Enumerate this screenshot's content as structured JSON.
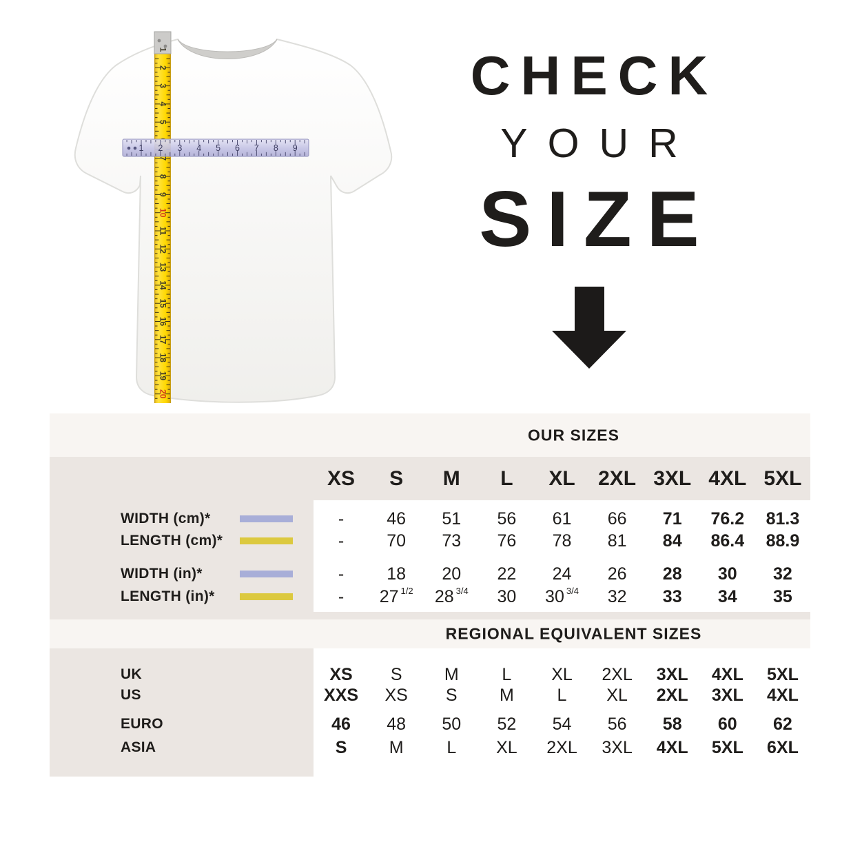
{
  "hero": {
    "line1": "CHECK",
    "line2": "YOUR",
    "line3": "SIZE",
    "arrow_icon": "down-arrow"
  },
  "tshirt": {
    "description": "white t-shirt with measuring tapes",
    "vertical_tape": {
      "color": "#ffd800",
      "numbers": [
        "1",
        "2",
        "3",
        "4",
        "5",
        "6",
        "7",
        "8",
        "9",
        "10",
        "11",
        "12",
        "13",
        "14",
        "15",
        "16",
        "17",
        "18",
        "19",
        "20"
      ],
      "red_numbers": [
        "10",
        "20"
      ]
    },
    "horizontal_ruler": {
      "color": "#c6c5e6",
      "numbers": [
        "1",
        "2",
        "3",
        "4",
        "5",
        "6",
        "7",
        "8",
        "9"
      ]
    }
  },
  "colors": {
    "ink": "#1f1d1b",
    "beige_section": "#ebe6e2",
    "light_strip": "#f8f5f2",
    "width_swatch": "#a8aed8",
    "length_swatch": "#dcc93f"
  },
  "chart_data": [
    {
      "type": "table",
      "title": "OUR SIZES",
      "columns": [
        "XS",
        "S",
        "M",
        "L",
        "XL",
        "2XL",
        "3XL",
        "4XL",
        "5XL"
      ],
      "bold_columns": [
        6,
        7,
        8
      ],
      "rows": [
        {
          "label": "WIDTH (cm)*",
          "swatch_color": "#a8aed8",
          "values": [
            "-",
            "46",
            "51",
            "56",
            "61",
            "66",
            "71",
            "76.2",
            "81.3"
          ]
        },
        {
          "label": "LENGTH (cm)*",
          "swatch_color": "#dcc93f",
          "values": [
            "-",
            "70",
            "73",
            "76",
            "78",
            "81",
            "84",
            "86.4",
            "88.9"
          ]
        },
        {
          "label": "WIDTH (in)*",
          "swatch_color": "#a8aed8",
          "values": [
            "-",
            "18",
            "20",
            "22",
            "24",
            "26",
            "28",
            "30",
            "32"
          ]
        },
        {
          "label": "LENGTH (in)*",
          "swatch_color": "#dcc93f",
          "values": [
            "-",
            "27 1/2",
            "28 3/4",
            "30",
            "30 3/4",
            "32",
            "33",
            "34",
            "35"
          ]
        }
      ]
    },
    {
      "type": "table",
      "title": "REGIONAL EQUIVALENT SIZES",
      "bold_columns": [
        0,
        6,
        7,
        8
      ],
      "rows": [
        {
          "label": "UK",
          "values": [
            "XS",
            "S",
            "M",
            "L",
            "XL",
            "2XL",
            "3XL",
            "4XL",
            "5XL"
          ]
        },
        {
          "label": "US",
          "values": [
            "XXS",
            "XS",
            "S",
            "M",
            "L",
            "XL",
            "2XL",
            "3XL",
            "4XL"
          ]
        },
        {
          "label": "EURO",
          "values": [
            "46",
            "48",
            "50",
            "52",
            "54",
            "56",
            "58",
            "60",
            "62"
          ]
        },
        {
          "label": "ASIA",
          "values": [
            "S",
            "M",
            "L",
            "XL",
            "2XL",
            "3XL",
            "4XL",
            "5XL",
            "6XL"
          ]
        }
      ]
    }
  ]
}
